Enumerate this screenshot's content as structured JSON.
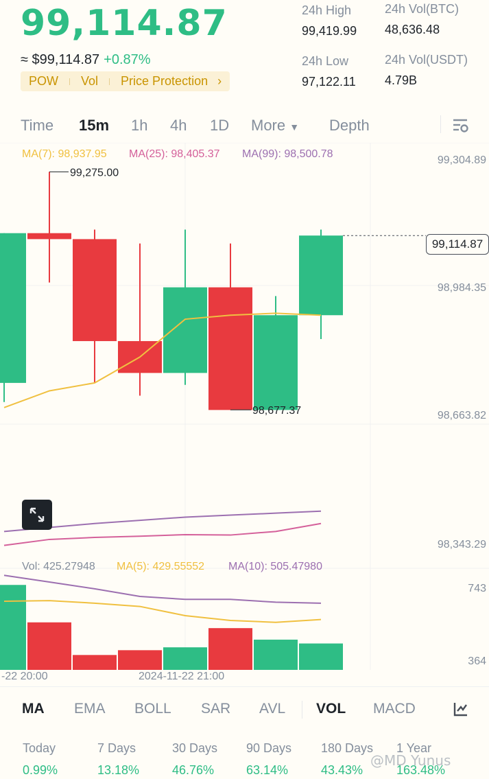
{
  "header": {
    "last_price": "99,114.87",
    "fiat_price": "≈ $99,114.87",
    "change_pct": "+0.87%",
    "tags": [
      "POW",
      "Vol",
      "Price Protection"
    ]
  },
  "stats": {
    "high_label": "24h High",
    "high_value": "99,419.99",
    "low_label": "24h Low",
    "low_value": "97,122.11",
    "vol_btc_label": "24h Vol(BTC)",
    "vol_btc_value": "48,636.48",
    "vol_usdt_label": "24h Vol(USDT)",
    "vol_usdt_value": "4.79B"
  },
  "timeframes": {
    "items": [
      "Time",
      "15m",
      "1h",
      "4h",
      "1D",
      "More"
    ],
    "active": "15m",
    "depth": "Depth"
  },
  "ma_legend": {
    "ma7": "MA(7): 98,937.95",
    "ma25": "MA(25): 98,405.37",
    "ma99": "MA(99): 98,500.78"
  },
  "price_axis": [
    "99,304.89",
    "98,984.35",
    "98,663.82",
    "98,343.29"
  ],
  "current_price_tag": "99,114.87",
  "high_marker": "99,275.00",
  "low_marker": "98,677.37",
  "vol_legend": {
    "vol": "Vol: 425.27948",
    "ma5": "MA(5): 429.55552",
    "ma10": "MA(10): 505.47980"
  },
  "vol_axis": [
    "743",
    "364"
  ],
  "time_axis": [
    "-22 20:00",
    "2024-11-22 21:00"
  ],
  "indicators": {
    "items": [
      "MA",
      "EMA",
      "BOLL",
      "SAR",
      "AVL",
      "VOL",
      "MACD"
    ],
    "active_main": "MA",
    "active_sub": "VOL"
  },
  "performance": [
    {
      "label": "Today",
      "value": "0.99%"
    },
    {
      "label": "7 Days",
      "value": "13.18%"
    },
    {
      "label": "30 Days",
      "value": "46.76%"
    },
    {
      "label": "90 Days",
      "value": "63.14%"
    },
    {
      "label": "180 Days",
      "value": "43.43%"
    },
    {
      "label": "1 Year",
      "value": "163.48%"
    }
  ],
  "watermark": "@MD Yunus",
  "colors": {
    "up": "#2ebd85",
    "down": "#e83a3f",
    "ma7": "#f0c040",
    "ma25": "#d4609a",
    "ma99": "#9c6fb0",
    "accent": "#c99400"
  },
  "candles": [
    {
      "o": 98745,
      "h": 99121,
      "l": 98697,
      "c": 99121
    },
    {
      "o": 99121,
      "h": 99275,
      "l": 98997,
      "c": 99106
    },
    {
      "o": 99106,
      "h": 99130,
      "l": 98745,
      "c": 98850
    },
    {
      "o": 98850,
      "h": 99095,
      "l": 98713,
      "c": 98770
    },
    {
      "o": 98770,
      "h": 99130,
      "l": 98740,
      "c": 98985
    },
    {
      "o": 98985,
      "h": 99095,
      "l": 98677,
      "c": 98677
    },
    {
      "o": 98677,
      "h": 98963,
      "l": 98677,
      "c": 98915
    },
    {
      "o": 98915,
      "h": 99130,
      "l": 98855,
      "c": 99115
    }
  ],
  "volumes": [
    760,
    565,
    395,
    420,
    435,
    535,
    475,
    455
  ],
  "ma7_values": [
    98683,
    98725,
    98745,
    98810,
    98905,
    98915,
    98920,
    98915
  ],
  "ma25_values": [
    98337,
    98352,
    98357,
    98360,
    98364,
    98363,
    98372,
    98392
  ],
  "ma99_values": [
    98372,
    98382,
    98392,
    98400,
    98408,
    98413,
    98418,
    98423
  ],
  "vol_ma5": [
    675,
    678,
    665,
    648,
    600,
    575,
    565,
    580
  ],
  "vol_ma10": [
    810,
    775,
    740,
    700,
    685,
    685,
    670,
    665
  ]
}
